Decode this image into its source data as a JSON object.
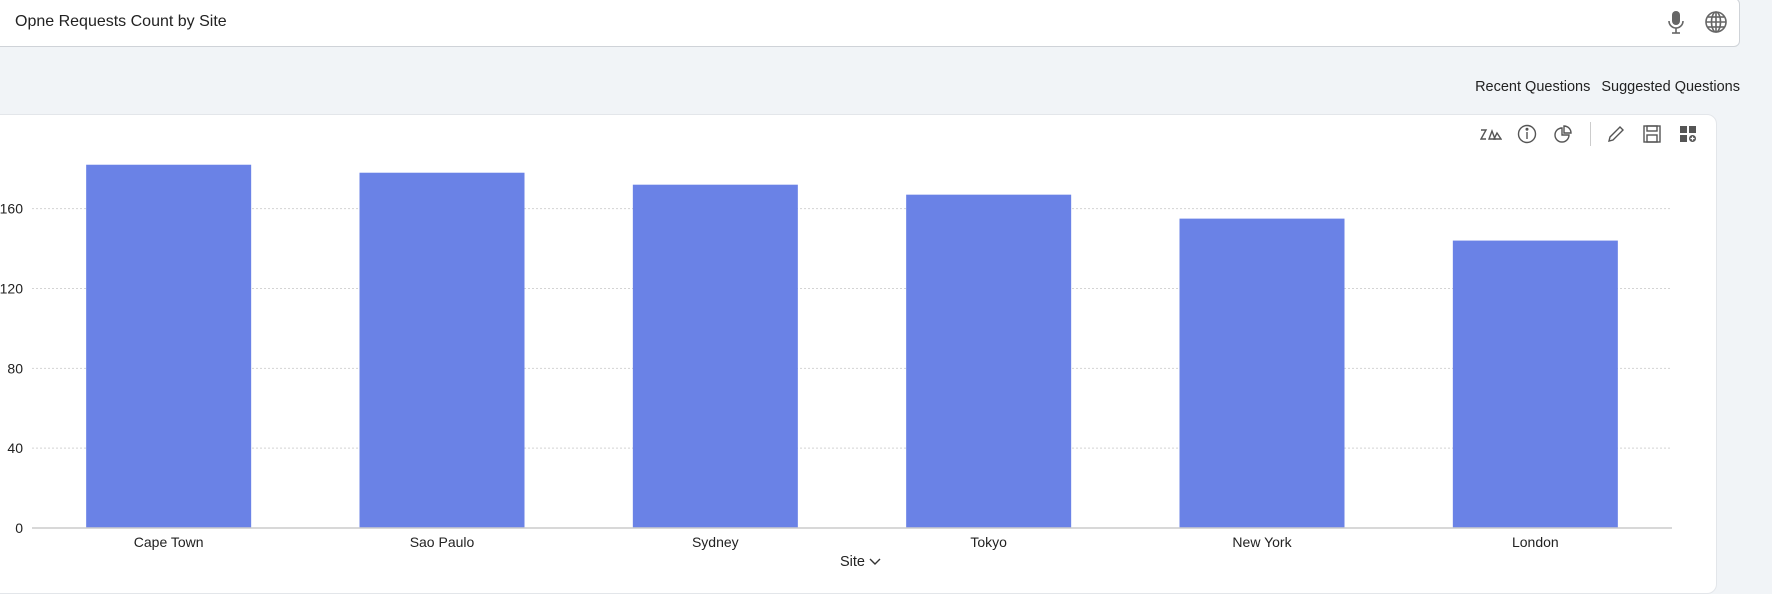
{
  "search": {
    "query": "Opne Requests Count by Site",
    "mic_icon": "microphone-icon",
    "globe_icon": "globe-icon"
  },
  "links": {
    "recent": "Recent Questions",
    "suggested": "Suggested Questions"
  },
  "toolbar": {
    "icons": [
      "zia-icon",
      "info-icon",
      "pie-chart-icon",
      "edit-icon",
      "save-icon",
      "add-widget-icon"
    ]
  },
  "chart_data": {
    "type": "bar",
    "categories": [
      "Cape Town",
      "Sao Paulo",
      "Sydney",
      "Tokyo",
      "New York",
      "London"
    ],
    "values": [
      182,
      178,
      172,
      167,
      155,
      144
    ],
    "xlabel": "Site",
    "ylabel": "",
    "ylim": [
      0,
      180
    ],
    "yticks": [
      0,
      40,
      80,
      120,
      160
    ],
    "grid": true,
    "color": "#6a82e6"
  }
}
